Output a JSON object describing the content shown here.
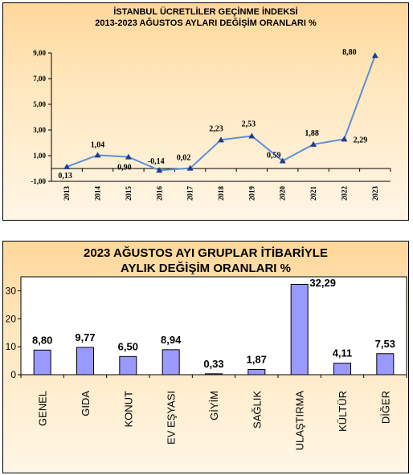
{
  "chart_data": [
    {
      "type": "line",
      "title": "İSTANBUL ÜCRETLİLER GEÇİNME İNDEKSİ",
      "subtitle": "2013-2023 AĞUSTOS AYLARI DEĞİŞİM ORANLARI %",
      "categories": [
        "2013",
        "2014",
        "2015",
        "2016",
        "2017",
        "2018",
        "2019",
        "2020",
        "2021",
        "2022",
        "2023"
      ],
      "values": [
        0.13,
        1.04,
        0.9,
        -0.14,
        0.02,
        2.23,
        2.53,
        0.59,
        1.88,
        2.29,
        8.8
      ],
      "value_labels": [
        "0,13",
        "1,04",
        "0,90",
        "-0,14",
        "0,02",
        "2,23",
        "2,53",
        "0,59",
        "1,88",
        "2,29",
        "8,80"
      ],
      "ylim": [
        -1,
        9
      ],
      "yticks": [
        -1,
        1,
        3,
        5,
        7,
        9
      ],
      "ytick_labels": [
        "-1,00",
        "1,00",
        "3,00",
        "5,00",
        "7,00",
        "9,00"
      ],
      "line_color": "#5b8fd6",
      "marker_color": "#1f3a93",
      "grid": false
    },
    {
      "type": "bar",
      "title": "2023 AĞUSTOS  AYI  GRUPLAR İTİBARİYLE",
      "subtitle": "AYLIK DEĞİŞİM  ORANLARI  %",
      "categories": [
        "GENEL",
        "GIDA",
        "KONUT",
        "EV EŞYASI",
        "GİYİM",
        "SAĞLIK",
        "ULAŞTIRMA",
        "KÜLTÜR",
        "DİĞER"
      ],
      "values": [
        8.8,
        9.77,
        6.5,
        8.94,
        0.33,
        1.87,
        32.29,
        4.11,
        7.53
      ],
      "value_labels": [
        "8,80",
        "9,77",
        "6,50",
        "8,94",
        "0,33",
        "1,87",
        "32,29",
        "4,11",
        "7,53"
      ],
      "ylim": [
        0,
        35
      ],
      "yticks": [
        0,
        10,
        20,
        30
      ],
      "ytick_labels": [
        "0",
        "10",
        "20",
        "30"
      ],
      "bar_color": "#9999ff",
      "grid": false
    }
  ]
}
